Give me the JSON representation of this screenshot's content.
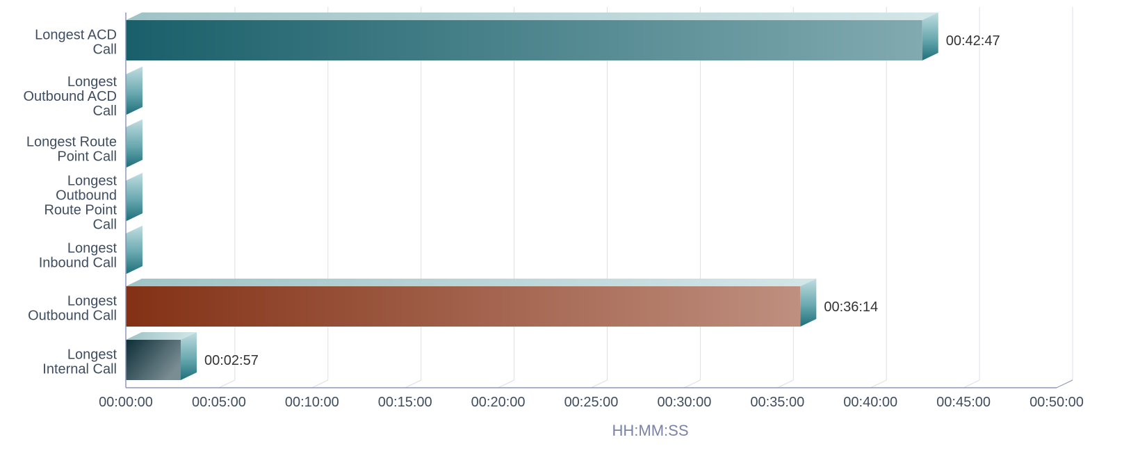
{
  "chart_data": {
    "type": "bar",
    "orientation": "horizontal",
    "style": "3d",
    "title": "",
    "xlabel": "HH:MM:SS",
    "ylabel": "",
    "xlim": [
      "00:00:00",
      "00:50:00"
    ],
    "x_ticks": [
      "00:00:00",
      "00:05:00",
      "00:10:00",
      "00:15:00",
      "00:20:00",
      "00:25:00",
      "00:30:00",
      "00:35:00",
      "00:40:00",
      "00:45:00",
      "00:50:00"
    ],
    "grid": true,
    "legend": "none",
    "categories": [
      [
        "Longest ACD",
        "Call"
      ],
      [
        "Longest",
        "Outbound ACD",
        "Call"
      ],
      [
        "Longest Route",
        "Point Call"
      ],
      [
        "Longest",
        "Outbound",
        "Route Point",
        "Call"
      ],
      [
        "Longest",
        "Inbound Call"
      ],
      [
        "Longest",
        "Outbound Call"
      ],
      [
        "Longest",
        "Internal Call"
      ]
    ],
    "values": [
      "00:42:47",
      "00:00:00",
      "00:00:00",
      "00:00:00",
      "00:00:00",
      "00:36:14",
      "00:02:57"
    ],
    "value_labels": [
      "00:42:47",
      "",
      "",
      "",
      "",
      "00:36:14",
      "00:02:57"
    ],
    "colors": [
      "#1a6470",
      "#d4862a",
      "#3a9a40",
      "#1a6470",
      "#a03020",
      "#8a3416",
      "#0e2f3a"
    ]
  }
}
